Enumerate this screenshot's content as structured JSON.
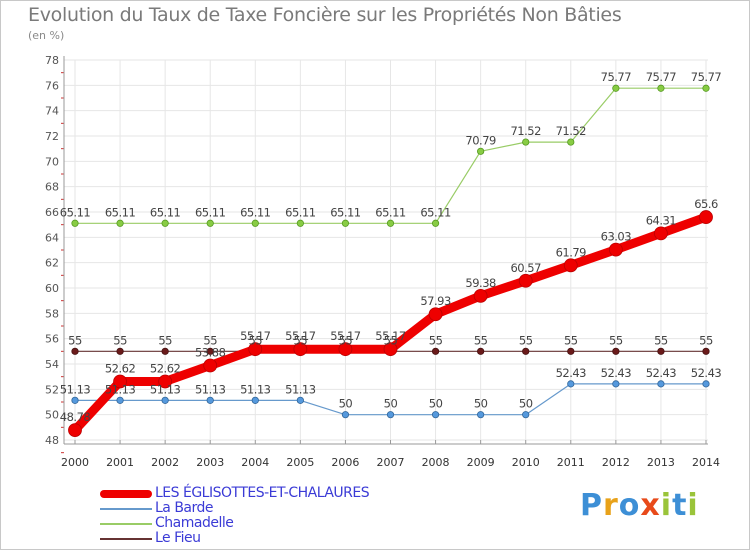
{
  "title": "Evolution du Taux de Taxe Foncière sur les Propriétés Non Bâties",
  "unit_label": "(en %)",
  "logo": {
    "text": "Proxiti",
    "letters": [
      "P",
      "r",
      "o",
      "x",
      "i",
      "t",
      "i"
    ],
    "colors": [
      "#3d8fd6",
      "#e8a21a",
      "#3d8fd6",
      "#e84a1a",
      "#9ac43a",
      "#3d8fd6",
      "#9ac43a"
    ]
  },
  "chart_data": {
    "type": "line",
    "title": "Evolution du Taux de Taxe Foncière sur les Propriétés Non Bâties",
    "ylabel": "(en %)",
    "xlabel": "",
    "x": [
      "2000",
      "2001",
      "2002",
      "2003",
      "2004",
      "2005",
      "2006",
      "2007",
      "2008",
      "2009",
      "2010",
      "2011",
      "2012",
      "2013",
      "2014"
    ],
    "ylim": [
      48,
      78
    ],
    "yticks": [
      48,
      50,
      52,
      54,
      56,
      58,
      60,
      62,
      64,
      66,
      68,
      70,
      72,
      74,
      76,
      78
    ],
    "grid": true,
    "legend_position": "bottom-left",
    "series": [
      {
        "name": "LES ÉGLISOTTES-ET-CHALAURES",
        "color": "#ee0000",
        "values": [
          48.78,
          52.62,
          52.62,
          53.88,
          55.17,
          55.17,
          55.17,
          55.17,
          57.93,
          59.38,
          60.57,
          61.79,
          63.03,
          64.31,
          65.6
        ],
        "labels": [
          "48.78",
          "52.62",
          "52.62",
          "53.88",
          "55.17",
          "55.17",
          "55.17",
          "55.17",
          "57.93",
          "59.38",
          "60.57",
          "61.79",
          "63.03",
          "64.31",
          "65.6"
        ]
      },
      {
        "name": "La Barde",
        "color": "#6699cc",
        "values": [
          51.13,
          51.13,
          51.13,
          51.13,
          51.13,
          51.13,
          50,
          50,
          50,
          50,
          50,
          52.43,
          52.43,
          52.43,
          52.43
        ],
        "labels": [
          "51.13",
          "51.13",
          "51.13",
          "51.13",
          "51.13",
          "51.13",
          "50",
          "50",
          "50",
          "50",
          "50",
          "52.43",
          "52.43",
          "52.43",
          "52.43"
        ]
      },
      {
        "name": "Chamadelle",
        "color": "#99cc66",
        "values": [
          65.11,
          65.11,
          65.11,
          65.11,
          65.11,
          65.11,
          65.11,
          65.11,
          65.11,
          70.79,
          71.52,
          71.52,
          75.77,
          75.77,
          75.77
        ],
        "labels": [
          "65.11",
          "65.11",
          "65.11",
          "65.11",
          "65.11",
          "65.11",
          "65.11",
          "65.11",
          "65.11",
          "70.79",
          "71.52",
          "71.52",
          "75.77",
          "75.77",
          "75.77"
        ]
      },
      {
        "name": "Le Fieu",
        "color": "#663333",
        "values": [
          55,
          55,
          55,
          55,
          55,
          55,
          55,
          55,
          55,
          55,
          55,
          55,
          55,
          55,
          55
        ],
        "labels": [
          "55",
          "55",
          "55",
          "55",
          "55",
          "55",
          "55",
          "55",
          "55",
          "55",
          "55",
          "55",
          "55",
          "55",
          "55"
        ]
      }
    ]
  }
}
